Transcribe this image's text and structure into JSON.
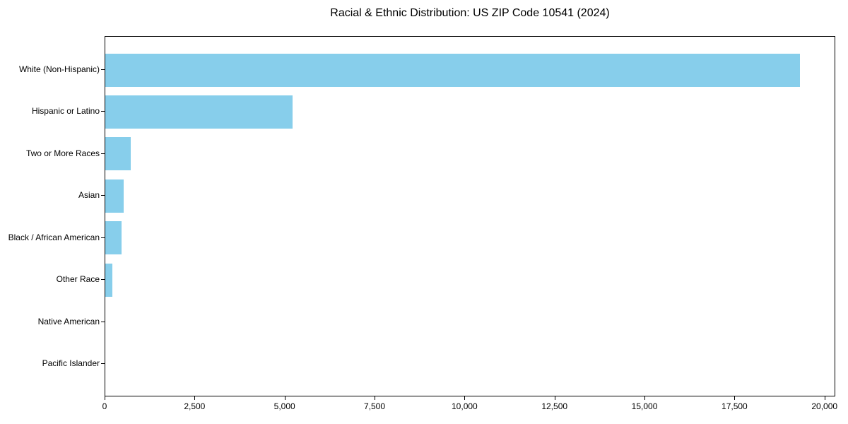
{
  "chart_data": {
    "type": "bar",
    "orientation": "horizontal",
    "title": "Racial & Ethnic Distribution: US ZIP Code 10541 (2024)",
    "categories": [
      "White (Non-Hispanic)",
      "Hispanic or Latino",
      "Two or More Races",
      "Asian",
      "Black / African American",
      "Other Race",
      "Native American",
      "Pacific Islander"
    ],
    "values": [
      19300,
      5200,
      700,
      520,
      455,
      190,
      0,
      0
    ],
    "xlabel": "",
    "ylabel": "",
    "xlim": [
      0,
      20300
    ],
    "x_ticks": [
      0,
      2500,
      5000,
      7500,
      10000,
      12500,
      15000,
      17500,
      20000
    ],
    "x_tick_labels": [
      "0",
      "2,500",
      "5,000",
      "7,500",
      "10,000",
      "12,500",
      "15,000",
      "17,500",
      "20,000"
    ],
    "bar_color": "#87CEEB",
    "spine_color": "#000000",
    "text_color": "#000000",
    "background": "#FFFFFF",
    "grid": false,
    "legend": null
  }
}
